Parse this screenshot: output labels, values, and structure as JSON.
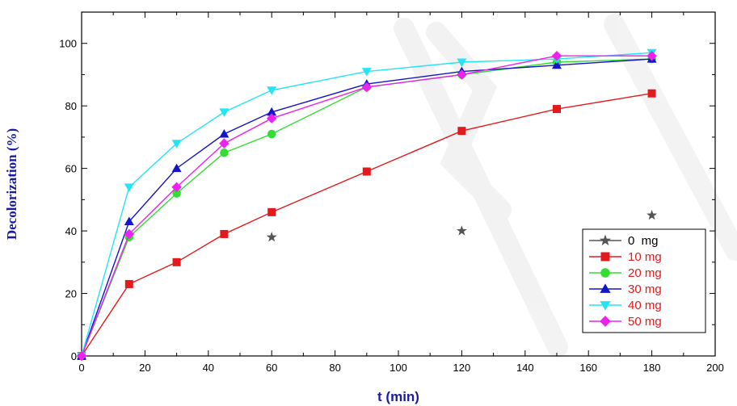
{
  "chart_data": {
    "type": "line",
    "title": "",
    "xlabel": "t (min)",
    "ylabel": "Decolorization (%)",
    "xlim": [
      0,
      200
    ],
    "ylim": [
      0,
      110
    ],
    "xticks": [
      0,
      20,
      40,
      60,
      80,
      100,
      120,
      140,
      160,
      180,
      200
    ],
    "yticks": [
      0,
      20,
      40,
      60,
      80,
      100
    ],
    "grid": false,
    "legend_position": "bottom-right",
    "series": [
      {
        "name": "0  mg",
        "color": "#555555",
        "marker": "star",
        "lines": false,
        "x": [
          60,
          120,
          180
        ],
        "y": [
          38,
          40,
          45
        ]
      },
      {
        "name": "10 mg",
        "color": "#e31a1c",
        "marker": "square",
        "lines": true,
        "x": [
          0,
          15,
          30,
          45,
          60,
          90,
          120,
          150,
          180
        ],
        "y": [
          0,
          23,
          30,
          39,
          46,
          59,
          72,
          79,
          84
        ]
      },
      {
        "name": "20 mg",
        "color": "#33dd33",
        "marker": "circle",
        "lines": true,
        "x": [
          0,
          15,
          30,
          45,
          60,
          90,
          120,
          150,
          180
        ],
        "y": [
          0,
          38,
          52,
          65,
          71,
          86,
          90,
          94,
          95
        ]
      },
      {
        "name": "30 mg",
        "color": "#1414c8",
        "marker": "triangle-up",
        "lines": true,
        "x": [
          0,
          15,
          30,
          45,
          60,
          90,
          120,
          150,
          180
        ],
        "y": [
          0,
          43,
          60,
          71,
          78,
          87,
          91,
          93,
          95
        ]
      },
      {
        "name": "40 mg",
        "color": "#22e6f5",
        "marker": "triangle-down",
        "lines": true,
        "x": [
          0,
          15,
          30,
          45,
          60,
          90,
          120,
          150,
          180
        ],
        "y": [
          0,
          54,
          68,
          78,
          85,
          91,
          94,
          95,
          97
        ]
      },
      {
        "name": "50 mg",
        "color": "#ee22ee",
        "marker": "diamond",
        "lines": true,
        "x": [
          0,
          15,
          30,
          45,
          60,
          90,
          120,
          150,
          180
        ],
        "y": [
          0,
          39,
          54,
          68,
          76,
          86,
          90,
          96,
          96
        ]
      }
    ]
  }
}
